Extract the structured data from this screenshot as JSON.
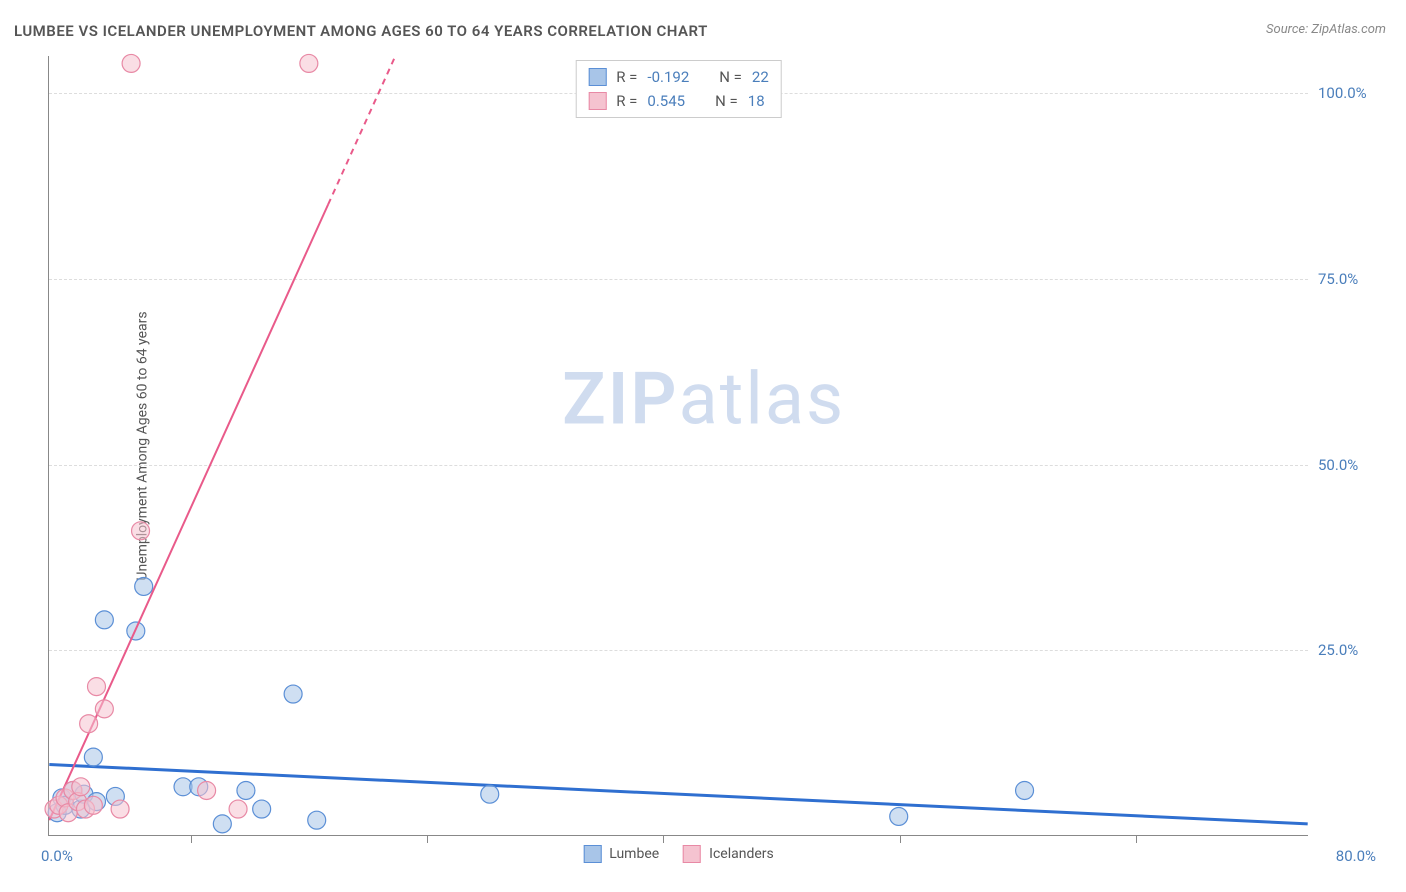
{
  "title": "LUMBEE VS ICELANDER UNEMPLOYMENT AMONG AGES 60 TO 64 YEARS CORRELATION CHART",
  "source": "Source: ZipAtlas.com",
  "y_axis_label": "Unemployment Among Ages 60 to 64 years",
  "watermark": {
    "part1": "ZIP",
    "part2": "atlas"
  },
  "chart": {
    "type": "scatter-with-regression",
    "background_color": "#ffffff",
    "grid_color": "#dddddd",
    "axis_color": "#888888",
    "tick_label_color": "#4a7ebb",
    "tick_label_fontsize": 15,
    "xlim": [
      0,
      80
    ],
    "ylim": [
      0,
      105
    ],
    "x_origin_label": "0.0%",
    "x_max_label": "80.0%",
    "y_ticks": [
      {
        "value": 25,
        "label": "25.0%"
      },
      {
        "value": 50,
        "label": "50.0%"
      },
      {
        "value": 75,
        "label": "75.0%"
      },
      {
        "value": 100,
        "label": "100.0%"
      }
    ],
    "x_tick_positions": [
      9,
      24,
      39,
      54,
      69
    ],
    "marker_radius": 9,
    "marker_opacity": 0.55,
    "series": [
      {
        "name": "Lumbee",
        "fill_color": "#a8c5e8",
        "stroke_color": "#5b8fd6",
        "regression_color": "#2f6fd0",
        "regression_width": 3,
        "R": "-0.192",
        "N": "22",
        "regression": {
          "x1": 0,
          "y1": 9.5,
          "x2": 80,
          "y2": 1.5
        },
        "points": [
          {
            "x": 0.5,
            "y": 3
          },
          {
            "x": 0.8,
            "y": 5
          },
          {
            "x": 1.0,
            "y": 4
          },
          {
            "x": 1.5,
            "y": 6
          },
          {
            "x": 2.0,
            "y": 3.5
          },
          {
            "x": 2.2,
            "y": 5.5
          },
          {
            "x": 2.8,
            "y": 10.5
          },
          {
            "x": 3.0,
            "y": 4.5
          },
          {
            "x": 3.5,
            "y": 29
          },
          {
            "x": 4.2,
            "y": 5.2
          },
          {
            "x": 5.5,
            "y": 27.5
          },
          {
            "x": 6.0,
            "y": 33.5
          },
          {
            "x": 8.5,
            "y": 6.5
          },
          {
            "x": 9.5,
            "y": 6.5
          },
          {
            "x": 11.0,
            "y": 1.5
          },
          {
            "x": 12.5,
            "y": 6
          },
          {
            "x": 13.5,
            "y": 3.5
          },
          {
            "x": 15.5,
            "y": 19
          },
          {
            "x": 17.0,
            "y": 2
          },
          {
            "x": 28.0,
            "y": 5.5
          },
          {
            "x": 54.0,
            "y": 2.5
          },
          {
            "x": 62.0,
            "y": 6
          }
        ]
      },
      {
        "name": "Icelanders",
        "fill_color": "#f5c3d0",
        "stroke_color": "#e889a5",
        "regression_color": "#e95a8a",
        "regression_width": 2,
        "R": "0.545",
        "N": "18",
        "regression": {
          "x1": 0,
          "y1": 2,
          "x2": 22,
          "y2": 105
        },
        "regression_dash_from": 85,
        "points": [
          {
            "x": 0.3,
            "y": 3.5
          },
          {
            "x": 0.6,
            "y": 4
          },
          {
            "x": 1.0,
            "y": 5
          },
          {
            "x": 1.2,
            "y": 3
          },
          {
            "x": 1.5,
            "y": 6
          },
          {
            "x": 1.8,
            "y": 4.5
          },
          {
            "x": 2.0,
            "y": 6.5
          },
          {
            "x": 2.3,
            "y": 3.5
          },
          {
            "x": 2.5,
            "y": 15
          },
          {
            "x": 2.8,
            "y": 4
          },
          {
            "x": 3.0,
            "y": 20
          },
          {
            "x": 3.5,
            "y": 17
          },
          {
            "x": 4.5,
            "y": 3.5
          },
          {
            "x": 5.2,
            "y": 104
          },
          {
            "x": 5.8,
            "y": 41
          },
          {
            "x": 10.0,
            "y": 6
          },
          {
            "x": 12.0,
            "y": 3.5
          },
          {
            "x": 16.5,
            "y": 104
          }
        ]
      }
    ]
  },
  "legend_bottom": [
    {
      "label": "Lumbee",
      "fill": "#a8c5e8",
      "stroke": "#5b8fd6"
    },
    {
      "label": "Icelanders",
      "fill": "#f5c3d0",
      "stroke": "#e889a5"
    }
  ],
  "stats_box_labels": {
    "R": "R =",
    "N": "N ="
  }
}
